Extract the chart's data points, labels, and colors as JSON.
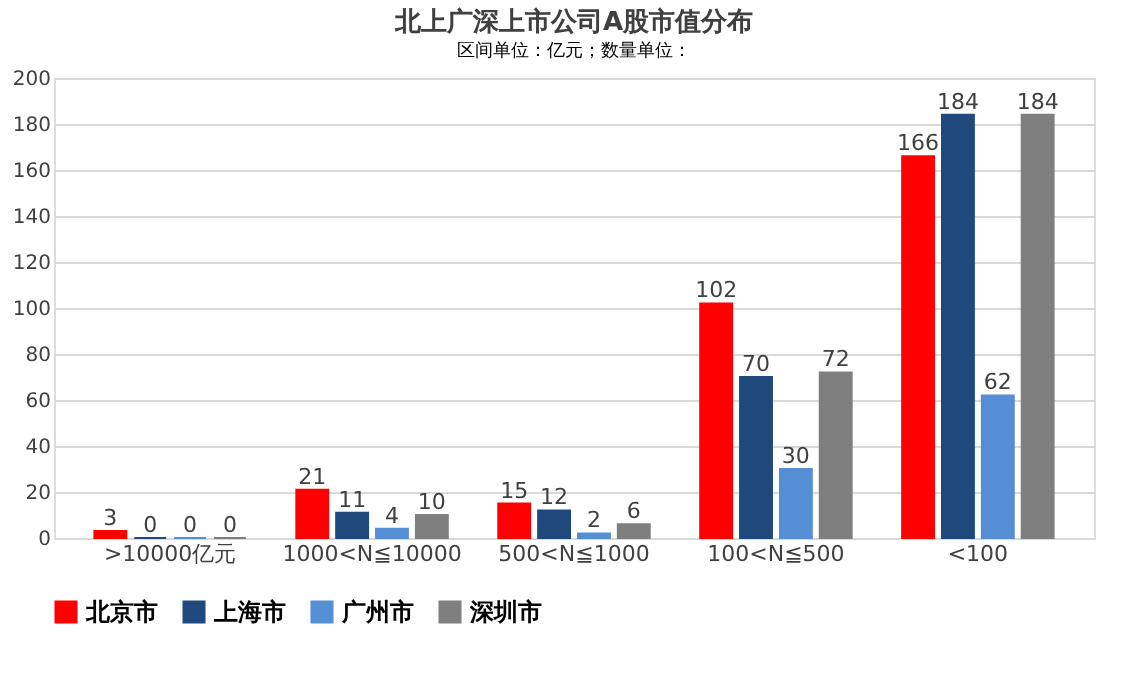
{
  "chart_data": {
    "type": "bar",
    "title": "北上广深上市公司A股市值分布",
    "annotations": [
      "区间单位：亿元；数量单位："
    ],
    "categories": [
      ">10000亿元",
      "1000<N≦10000",
      "500<N≦1000",
      "100<N≦500",
      "<100"
    ],
    "series": [
      {
        "name": "北京市",
        "color": "#ff0000",
        "values": [
          3,
          21,
          15,
          102,
          166
        ]
      },
      {
        "name": "上海市",
        "color": "#1f497d",
        "values": [
          0,
          11,
          12,
          70,
          184
        ]
      },
      {
        "name": "广州市",
        "color": "#558ed5",
        "values": [
          0,
          4,
          2,
          30,
          62
        ]
      },
      {
        "name": "深圳市",
        "color": "#7f7f7f",
        "values": [
          0,
          10,
          6,
          72,
          184
        ]
      }
    ],
    "ylim": [
      0,
      200
    ],
    "yticks": [
      0,
      20,
      40,
      60,
      80,
      100,
      120,
      140,
      160,
      180,
      200
    ],
    "grid": "y",
    "legend": "bottom",
    "data_labels": true
  }
}
